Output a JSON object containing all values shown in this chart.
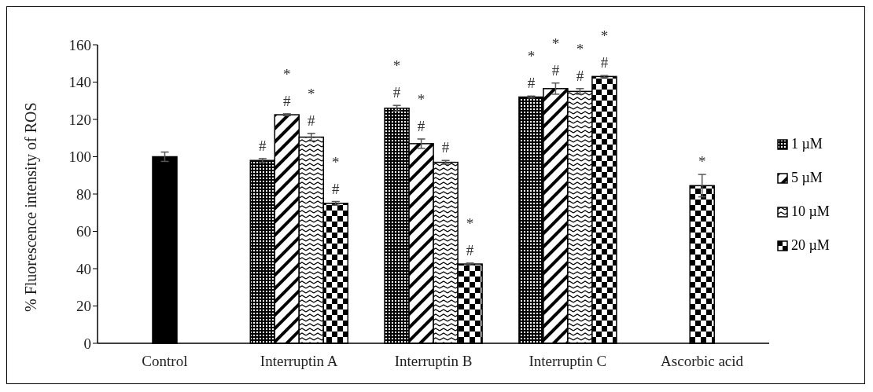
{
  "chart_data": {
    "type": "bar",
    "ylabel": "% Fluorescence intensity of ROS",
    "categories": [
      "Control",
      "Interruptin A",
      "Interruptin B",
      "Interruptin C",
      "Ascorbic acid"
    ],
    "series": [
      {
        "color": "#000000",
        "values": [
          100,
          null,
          null,
          null,
          null
        ],
        "errors": [
          2.5,
          null,
          null,
          null,
          null
        ]
      },
      {
        "name": "1 µM",
        "color": "#000000",
        "values": [
          null,
          98,
          126,
          132,
          null
        ],
        "errors": [
          null,
          1,
          1.5,
          0.5,
          null
        ],
        "value_labels": [
          null,
          "#",
          "*\n#",
          "*\n#",
          null
        ]
      },
      {
        "name": "5 µM",
        "color": "#000000",
        "values": [
          null,
          122.5,
          107,
          136.5,
          null
        ],
        "errors": [
          null,
          0.5,
          2.5,
          3,
          null
        ],
        "value_labels": [
          null,
          "*\n#",
          "*\n#",
          "*\n#",
          null
        ]
      },
      {
        "name": "10 µM",
        "color": "#000000",
        "values": [
          null,
          110.5,
          97,
          135,
          null
        ],
        "errors": [
          null,
          2,
          1,
          1.5,
          null
        ],
        "value_labels": [
          null,
          "*\n#",
          "#",
          "*\n#",
          null
        ]
      },
      {
        "name": "20 µM",
        "color": "#000000",
        "values": [
          null,
          75,
          42.5,
          143,
          84.5
        ],
        "errors": [
          null,
          1,
          0.5,
          0.5,
          6
        ],
        "value_labels": [
          null,
          "*\n#",
          "*\n#",
          "*\n#",
          "*"
        ]
      }
    ],
    "ylim": [
      0,
      160
    ],
    "yticks": [
      0,
      20,
      40,
      60,
      80,
      100,
      120,
      140,
      160
    ],
    "grid": false,
    "legend": "right"
  }
}
